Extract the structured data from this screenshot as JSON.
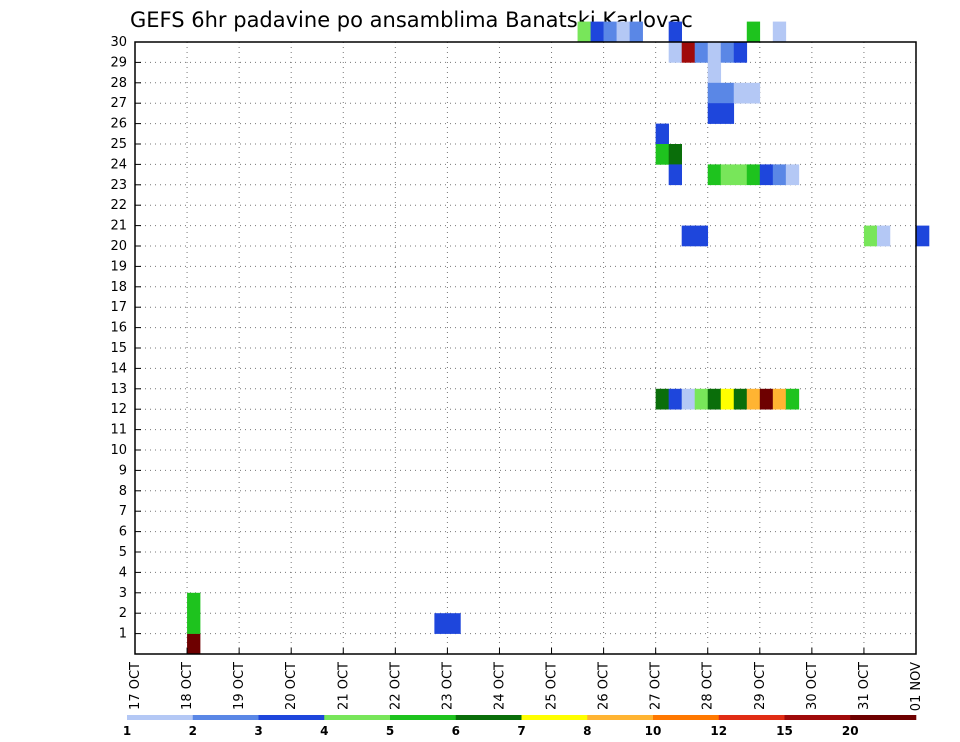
{
  "chart_data": {
    "type": "heatmap",
    "title": "GEFS 6hr padavine po ansamblima Banatski Karlovac",
    "xlabel": "",
    "ylabel": "",
    "x_tick_labels": [
      "17 OCT",
      "18 OCT",
      "19 OCT",
      "20 OCT",
      "21 OCT",
      "22 OCT",
      "23 OCT",
      "24 OCT",
      "25 OCT",
      "26 OCT",
      "27 OCT",
      "28 OCT",
      "29 OCT",
      "30 OCT",
      "31 OCT",
      "01 NOV"
    ],
    "y_tick_labels": [
      "1",
      "2",
      "3",
      "4",
      "5",
      "6",
      "7",
      "8",
      "9",
      "10",
      "11",
      "12",
      "13",
      "14",
      "15",
      "16",
      "17",
      "18",
      "19",
      "20",
      "21",
      "22",
      "23",
      "24",
      "25",
      "26",
      "27",
      "28",
      "29",
      "30"
    ],
    "y_range": [
      0,
      30
    ],
    "time_step_hours": 6,
    "grid": true,
    "legend": {
      "placement": "bottom",
      "labels": [
        "1",
        "2",
        "3",
        "4",
        "5",
        "6",
        "7",
        "8",
        "10",
        "12",
        "15",
        "20"
      ],
      "colors": [
        "#b4c8f5",
        "#5a87e6",
        "#1e46dc",
        "#78e65a",
        "#1ec31e",
        "#0a6e0a",
        "#ffff00",
        "#ffb432",
        "#ff7800",
        "#e12d14",
        "#a00a0a",
        "#6e0000"
      ]
    },
    "cells": [
      [
        4,
        0,
        11
      ],
      [
        4,
        1,
        4
      ],
      [
        4,
        2,
        4
      ],
      [
        23,
        1,
        2
      ],
      [
        24,
        1,
        2
      ],
      [
        34,
        30,
        3
      ],
      [
        35,
        30,
        2
      ],
      [
        36,
        30,
        1
      ],
      [
        37,
        30,
        0
      ],
      [
        38,
        30,
        1
      ],
      [
        41,
        30,
        2
      ],
      [
        41,
        29,
        0
      ],
      [
        42,
        29,
        10
      ],
      [
        43,
        29,
        1
      ],
      [
        44,
        29,
        0
      ],
      [
        45,
        29,
        1
      ],
      [
        46,
        29,
        2
      ],
      [
        47,
        30,
        4
      ],
      [
        49,
        30,
        0
      ],
      [
        44,
        28,
        0
      ],
      [
        44,
        27,
        1
      ],
      [
        45,
        27,
        1
      ],
      [
        46,
        27,
        0
      ],
      [
        47,
        27,
        0
      ],
      [
        44,
        26,
        2
      ],
      [
        45,
        26,
        2
      ],
      [
        40,
        25,
        2
      ],
      [
        40,
        24,
        4
      ],
      [
        41,
        24,
        5
      ],
      [
        41,
        23,
        2
      ],
      [
        44,
        23,
        4
      ],
      [
        45,
        23,
        3
      ],
      [
        46,
        23,
        3
      ],
      [
        47,
        23,
        4
      ],
      [
        48,
        23,
        2
      ],
      [
        49,
        23,
        1
      ],
      [
        50,
        23,
        0
      ],
      [
        42,
        20,
        2
      ],
      [
        43,
        20,
        2
      ],
      [
        56,
        20,
        3
      ],
      [
        57,
        20,
        0
      ],
      [
        60,
        20,
        2
      ],
      [
        40,
        12,
        5
      ],
      [
        41,
        12,
        2
      ],
      [
        42,
        12,
        0
      ],
      [
        43,
        12,
        3
      ],
      [
        44,
        12,
        5
      ],
      [
        45,
        12,
        6
      ],
      [
        46,
        12,
        5
      ],
      [
        47,
        12,
        7
      ],
      [
        48,
        12,
        11
      ],
      [
        49,
        12,
        7
      ],
      [
        50,
        12,
        4
      ]
    ]
  }
}
